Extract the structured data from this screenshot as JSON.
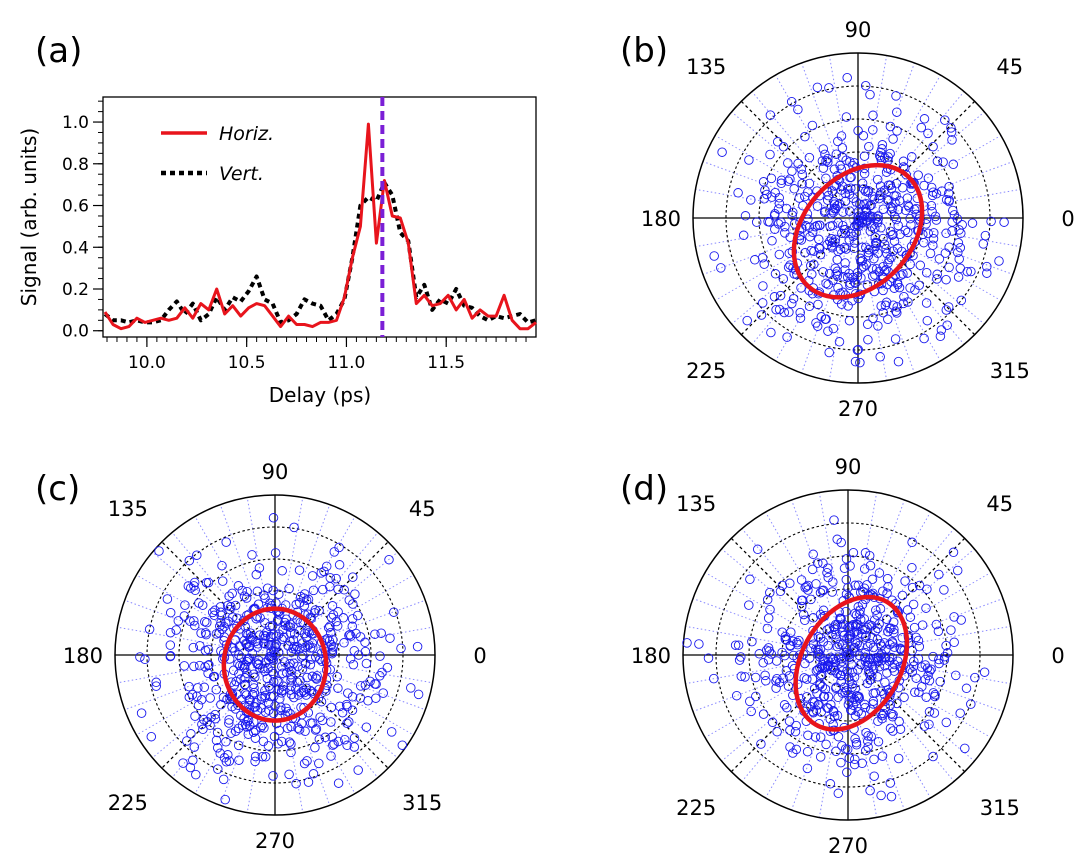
{
  "chart_data": [
    {
      "id": "a",
      "type": "line",
      "panel_label": "(a)",
      "xlabel": "Delay (ps)",
      "ylabel": "Signal (arb. units)",
      "xlim": [
        9.78,
        11.95
      ],
      "ylim": [
        -0.03,
        1.12
      ],
      "xticks": [
        10.0,
        10.5,
        11.0,
        11.5
      ],
      "xtick_labels": [
        "10.0",
        "10.5",
        "11.0",
        "11.5"
      ],
      "yticks": [
        0.0,
        0.2,
        0.4,
        0.6,
        0.8,
        1.0
      ],
      "ytick_labels": [
        "0.0",
        "0.2",
        "0.4",
        "0.6",
        "0.8",
        "1.0"
      ],
      "legend_position": "top-left",
      "vline": {
        "x": 11.18,
        "color": "#7b1fd6"
      },
      "series": [
        {
          "name": "Horiz.",
          "color": "#e8141c",
          "style": "solid",
          "x": [
            9.79,
            9.83,
            9.87,
            9.91,
            9.95,
            9.99,
            10.03,
            10.07,
            10.11,
            10.15,
            10.19,
            10.23,
            10.27,
            10.31,
            10.35,
            10.39,
            10.43,
            10.47,
            10.51,
            10.55,
            10.59,
            10.63,
            10.67,
            10.71,
            10.75,
            10.79,
            10.83,
            10.87,
            10.91,
            10.95,
            10.99,
            11.03,
            11.07,
            11.11,
            11.15,
            11.19,
            11.23,
            11.27,
            11.31,
            11.35,
            11.39,
            11.43,
            11.47,
            11.51,
            11.55,
            11.59,
            11.63,
            11.67,
            11.71,
            11.75,
            11.79,
            11.83,
            11.87,
            11.91,
            11.95
          ],
          "y": [
            0.09,
            0.03,
            0.01,
            0.02,
            0.06,
            0.04,
            0.05,
            0.06,
            0.05,
            0.06,
            0.11,
            0.06,
            0.13,
            0.1,
            0.2,
            0.08,
            0.12,
            0.07,
            0.11,
            0.13,
            0.12,
            0.07,
            0.02,
            0.07,
            0.03,
            0.03,
            0.02,
            0.04,
            0.04,
            0.05,
            0.16,
            0.35,
            0.5,
            0.99,
            0.42,
            0.72,
            0.55,
            0.54,
            0.42,
            0.13,
            0.17,
            0.12,
            0.13,
            0.17,
            0.1,
            0.15,
            0.06,
            0.1,
            0.07,
            0.07,
            0.17,
            0.05,
            0.01,
            0.01,
            0.04
          ]
        },
        {
          "name": "Vert.",
          "color": "#000000",
          "style": "dotted",
          "x": [
            9.79,
            9.83,
            9.87,
            9.91,
            9.95,
            9.99,
            10.03,
            10.07,
            10.11,
            10.15,
            10.19,
            10.23,
            10.27,
            10.31,
            10.35,
            10.39,
            10.43,
            10.47,
            10.51,
            10.55,
            10.59,
            10.63,
            10.67,
            10.71,
            10.75,
            10.79,
            10.83,
            10.87,
            10.91,
            10.95,
            10.99,
            11.03,
            11.07,
            11.11,
            11.15,
            11.19,
            11.23,
            11.27,
            11.31,
            11.35,
            11.39,
            11.43,
            11.47,
            11.51,
            11.55,
            11.59,
            11.63,
            11.67,
            11.71,
            11.75,
            11.79,
            11.83,
            11.87,
            11.91,
            11.95
          ],
          "y": [
            0.08,
            0.05,
            0.05,
            0.04,
            0.05,
            0.04,
            0.04,
            0.05,
            0.1,
            0.14,
            0.08,
            0.13,
            0.05,
            0.08,
            0.16,
            0.1,
            0.16,
            0.14,
            0.19,
            0.26,
            0.15,
            0.13,
            0.04,
            0.05,
            0.08,
            0.15,
            0.13,
            0.12,
            0.05,
            0.08,
            0.15,
            0.35,
            0.6,
            0.64,
            0.62,
            0.71,
            0.65,
            0.47,
            0.43,
            0.16,
            0.22,
            0.1,
            0.15,
            0.13,
            0.2,
            0.12,
            0.11,
            0.07,
            0.05,
            0.07,
            0.06,
            0.07,
            0.08,
            0.04,
            0.05
          ]
        }
      ]
    },
    {
      "id": "b",
      "type": "scatter",
      "panel_label": "(b)",
      "coordinate_system": "polar",
      "angle_labels": [
        "0",
        "45",
        "90",
        "135",
        "180",
        "225",
        "270",
        "315"
      ],
      "grid_rings": 4,
      "scatter_color": "#1a1aee",
      "num_points": 560,
      "point_cloud": {
        "cx": 0.0,
        "cy": -0.08,
        "spread": 0.33,
        "clip_r": 0.93
      },
      "fit_color": "#e8141c",
      "fit": {
        "cx": 0.0,
        "cy": -0.08,
        "a": 0.45,
        "b": 0.33,
        "angle_deg": 48
      }
    },
    {
      "id": "c",
      "type": "scatter",
      "panel_label": "(c)",
      "coordinate_system": "polar",
      "angle_labels": [
        "0",
        "45",
        "90",
        "135",
        "180",
        "225",
        "270",
        "315"
      ],
      "grid_rings": 4,
      "scatter_color": "#1a1aee",
      "num_points": 600,
      "point_cloud": {
        "cx": 0.0,
        "cy": -0.06,
        "spread": 0.34,
        "clip_r": 0.98
      },
      "fit_color": "#e8141c",
      "fit": {
        "cx": 0.0,
        "cy": -0.06,
        "a": 0.35,
        "b": 0.32,
        "angle_deg": 90
      }
    },
    {
      "id": "d",
      "type": "scatter",
      "panel_label": "(d)",
      "coordinate_system": "polar",
      "angle_labels": [
        "0",
        "45",
        "90",
        "135",
        "180",
        "225",
        "270",
        "315"
      ],
      "grid_rings": 4,
      "scatter_color": "#1a1aee",
      "num_points": 560,
      "point_cloud": {
        "cx": 0.02,
        "cy": -0.05,
        "spread": 0.31,
        "clip_r": 1.0
      },
      "fit_color": "#e8141c",
      "fit": {
        "cx": 0.02,
        "cy": -0.05,
        "a": 0.43,
        "b": 0.3,
        "angle_deg": 60
      }
    }
  ]
}
